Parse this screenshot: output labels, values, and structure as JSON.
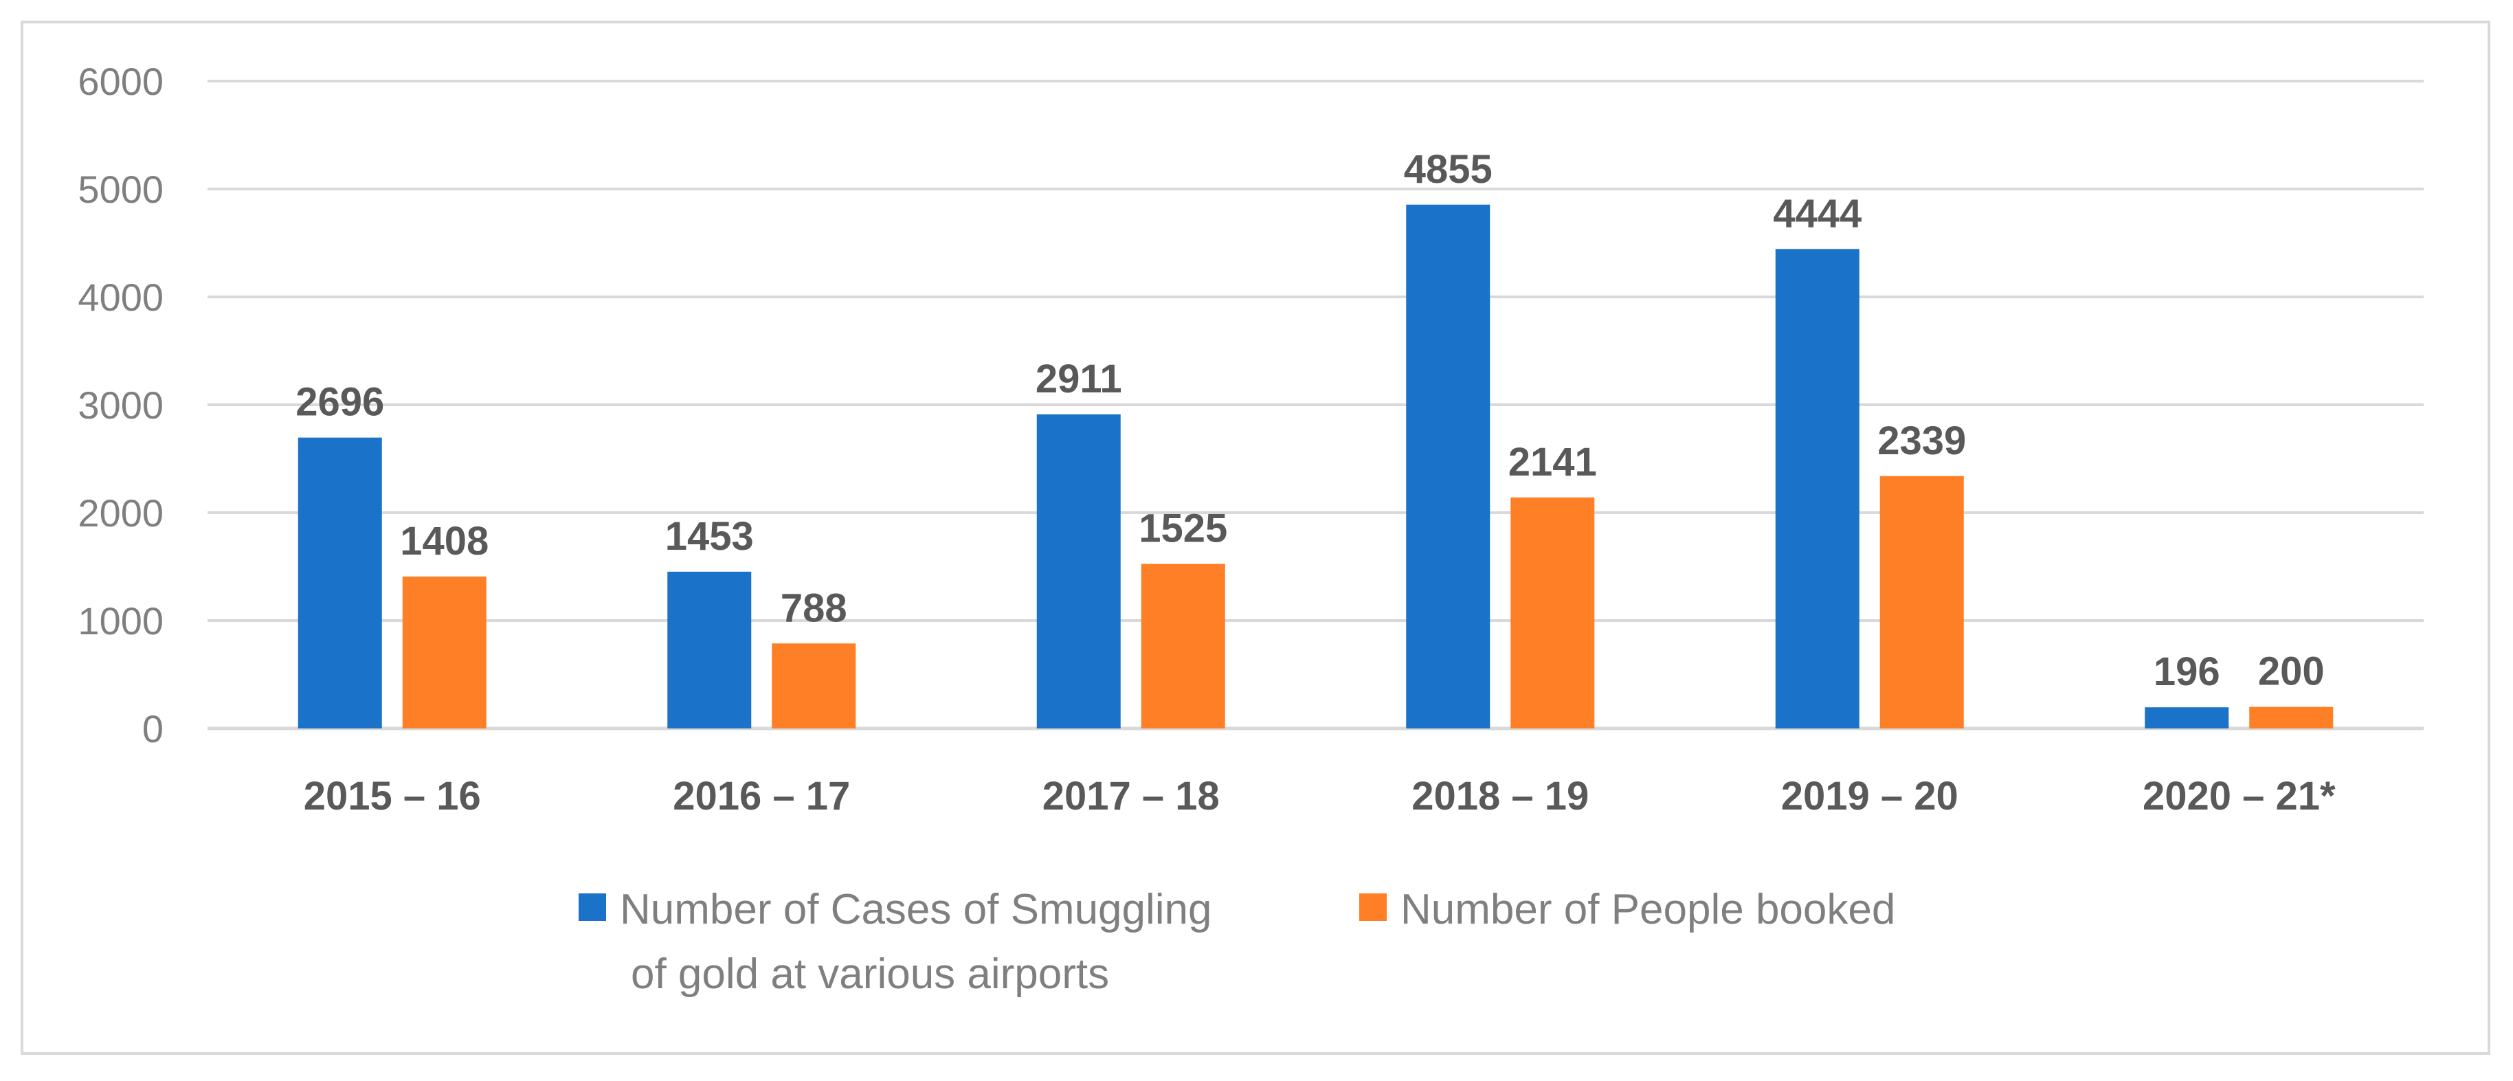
{
  "chart_data": {
    "type": "bar",
    "title": "",
    "xlabel": "",
    "ylabel": "",
    "ylim": [
      0,
      6000
    ],
    "yticks": [
      0,
      1000,
      2000,
      3000,
      4000,
      5000,
      6000
    ],
    "grid": true,
    "legend_position": "bottom",
    "categories": [
      "2015 – 16",
      "2016 – 17",
      "2017 – 18",
      "2018 – 19",
      "2019 – 20",
      "2020 – 21*"
    ],
    "series": [
      {
        "name": "Number of Cases of Smuggling of gold at various airports",
        "legend_lines": [
          "Number of Cases of Smuggling",
          "of gold at various airports"
        ],
        "color": "#1a73c9",
        "values": [
          2696,
          1453,
          2911,
          4855,
          4444,
          196
        ]
      },
      {
        "name": "Number of People booked",
        "legend_lines": [
          "Number of People booked"
        ],
        "color": "#ff7f27",
        "values": [
          1408,
          788,
          1525,
          2141,
          2339,
          200
        ]
      }
    ]
  }
}
